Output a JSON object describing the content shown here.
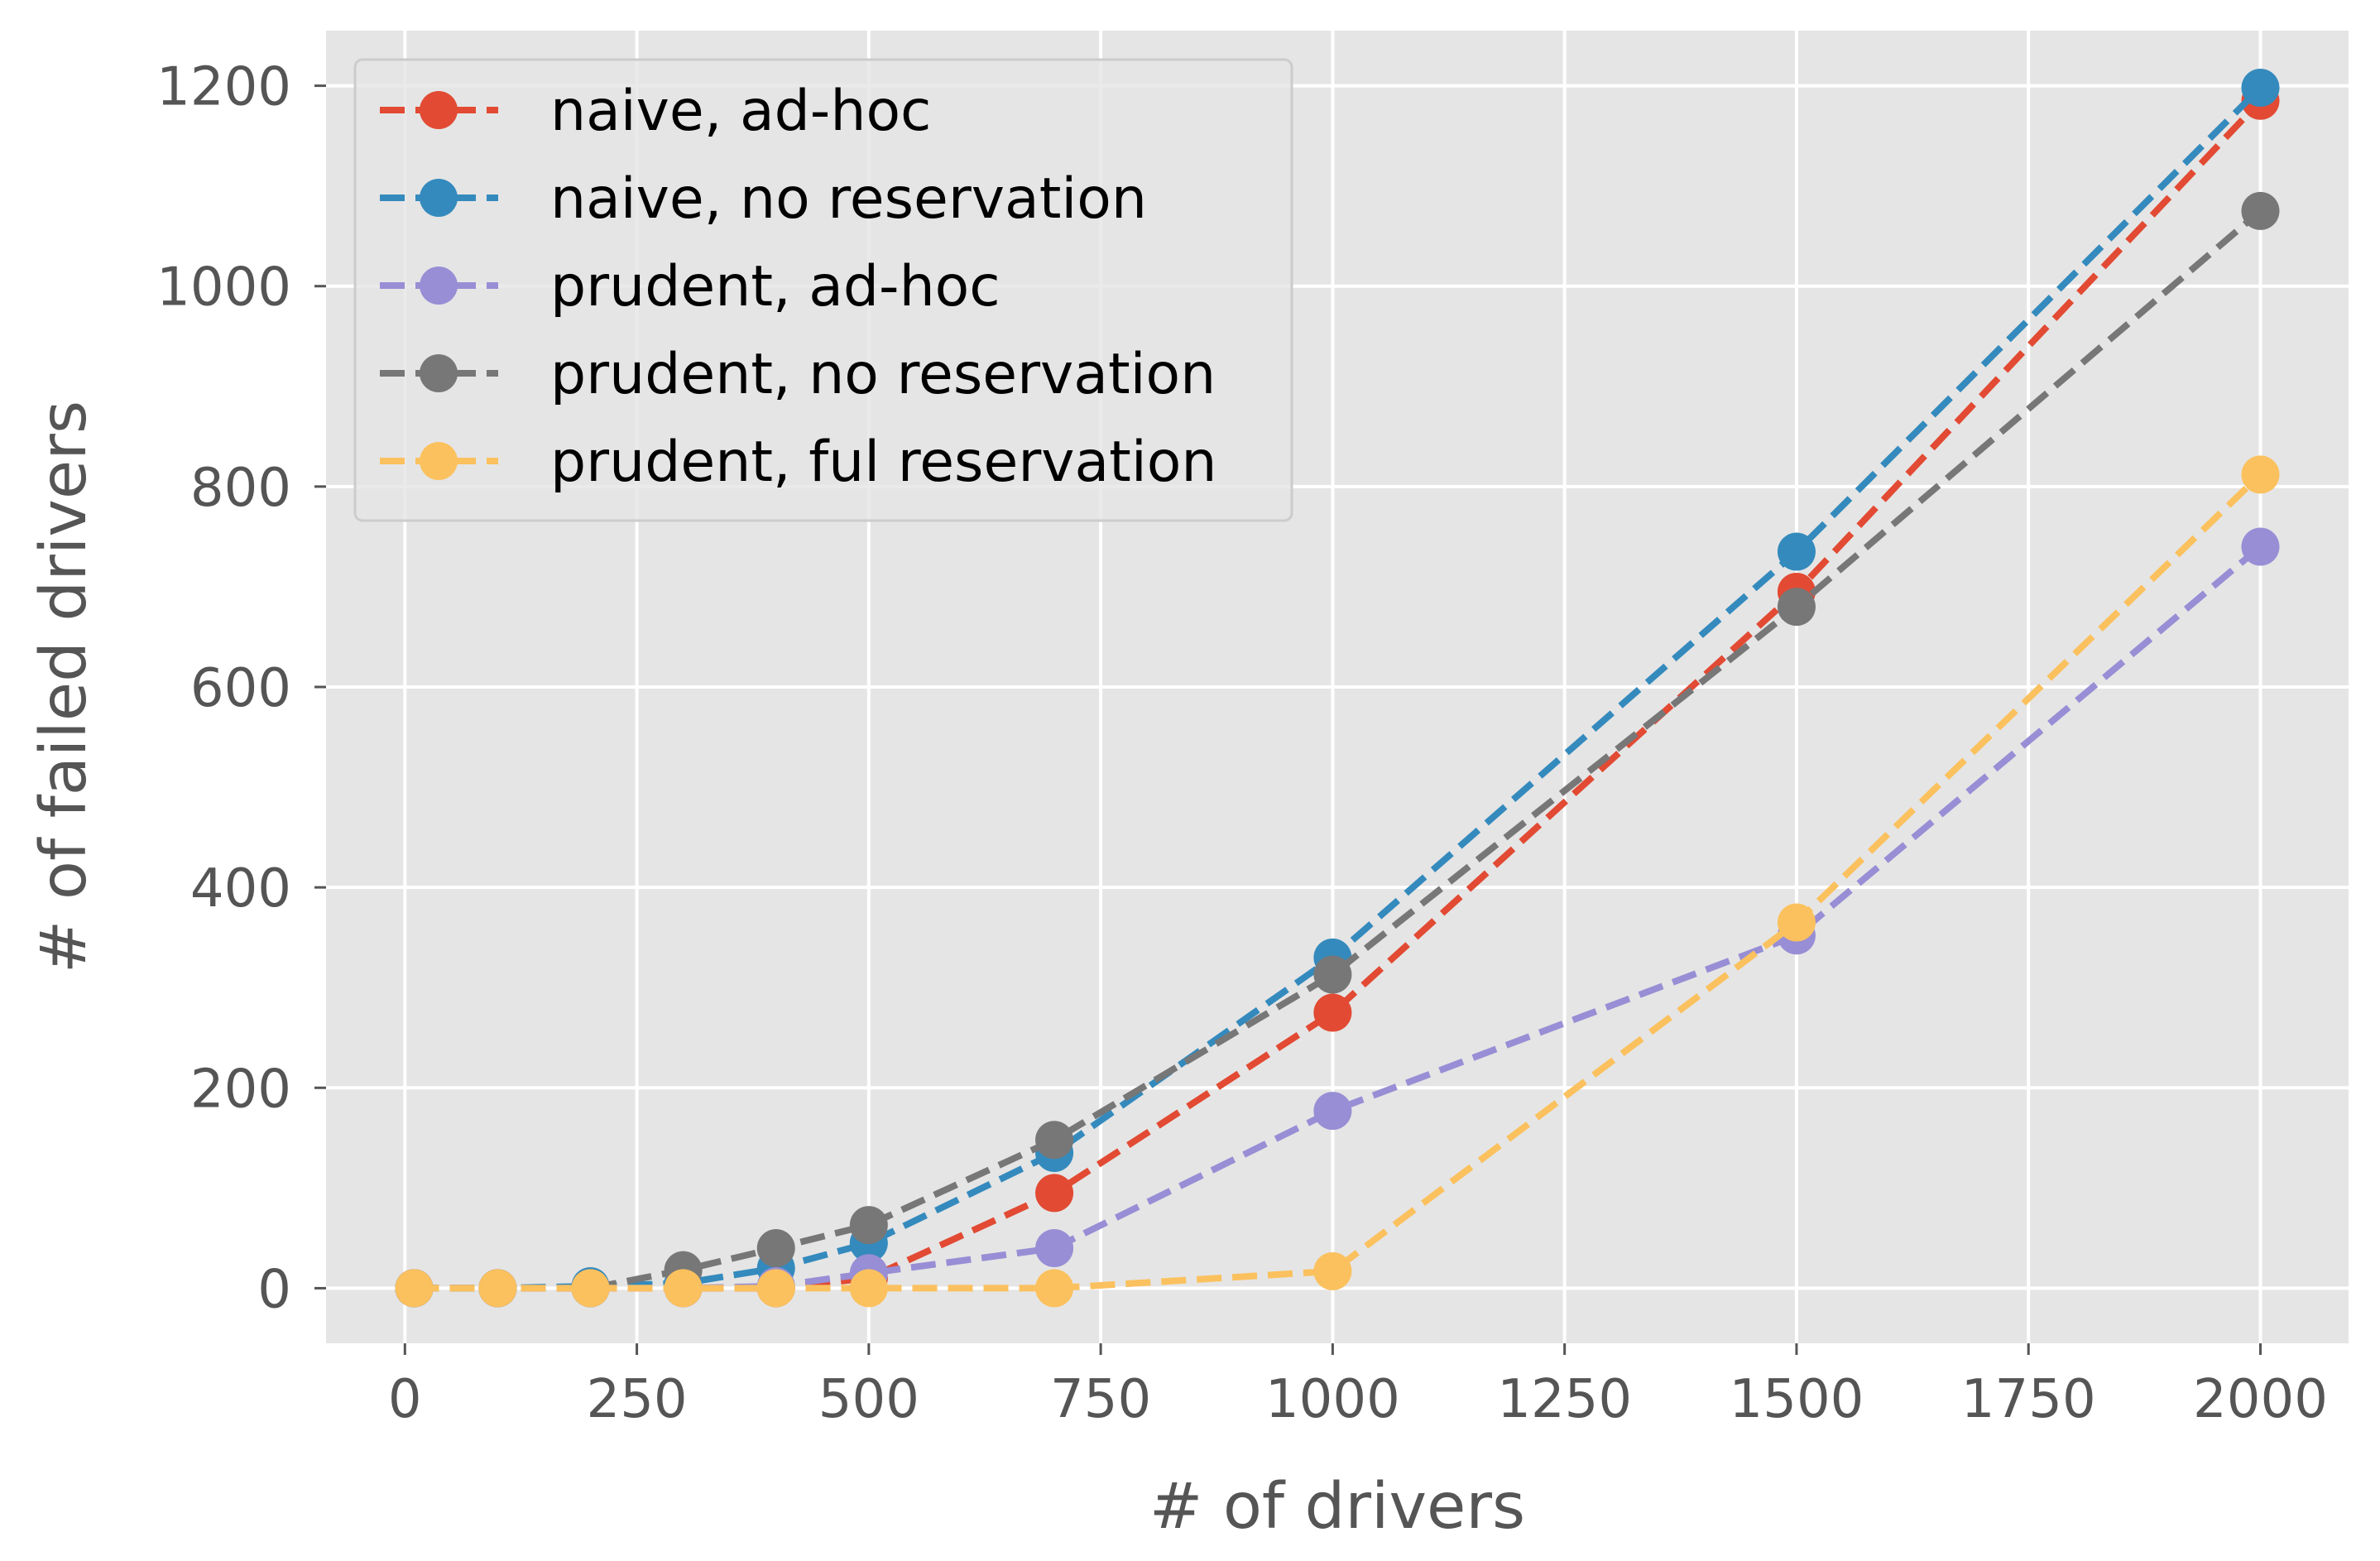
{
  "chart_data": {
    "type": "line",
    "title": "",
    "xlabel": "# of drivers",
    "ylabel": "# of failed drivers",
    "xlim": [
      -85,
      2095
    ],
    "ylim": [
      -55,
      1255
    ],
    "xticks": [
      0,
      250,
      500,
      750,
      1000,
      1250,
      1500,
      1750,
      2000
    ],
    "yticks": [
      0,
      200,
      400,
      600,
      800,
      1000,
      1200
    ],
    "grid": true,
    "legend_position": "top-left",
    "series": [
      {
        "name": "naive, ad-hoc",
        "color": "#E24A33",
        "x": [
          10,
          100,
          200,
          300,
          400,
          500,
          700,
          1000,
          1500,
          2000
        ],
        "y": [
          0,
          0,
          0,
          0,
          0,
          10,
          95,
          275,
          695,
          1185
        ]
      },
      {
        "name": "naive, no reservation",
        "color": "#348ABD",
        "x": [
          10,
          100,
          200,
          300,
          400,
          500,
          700,
          1000,
          1500,
          2000
        ],
        "y": [
          0,
          0,
          2,
          5,
          20,
          45,
          135,
          330,
          735,
          1198
        ]
      },
      {
        "name": "prudent, ad-hoc",
        "color": "#988ED5",
        "x": [
          10,
          100,
          200,
          300,
          400,
          500,
          700,
          1000,
          1500,
          2000
        ],
        "y": [
          0,
          0,
          0,
          0,
          2,
          15,
          40,
          177,
          352,
          740
        ]
      },
      {
        "name": "prudent, no reservation",
        "color": "#777777",
        "x": [
          10,
          100,
          200,
          300,
          400,
          500,
          700,
          1000,
          1500,
          2000
        ],
        "y": [
          0,
          0,
          0,
          18,
          40,
          63,
          148,
          313,
          680,
          1075
        ]
      },
      {
        "name": "prudent, ful reservation",
        "color": "#FBC15E",
        "x": [
          10,
          100,
          200,
          300,
          400,
          500,
          700,
          1000,
          1500,
          2000
        ],
        "y": [
          0,
          0,
          0,
          0,
          0,
          0,
          0,
          17,
          365,
          812
        ]
      }
    ]
  }
}
